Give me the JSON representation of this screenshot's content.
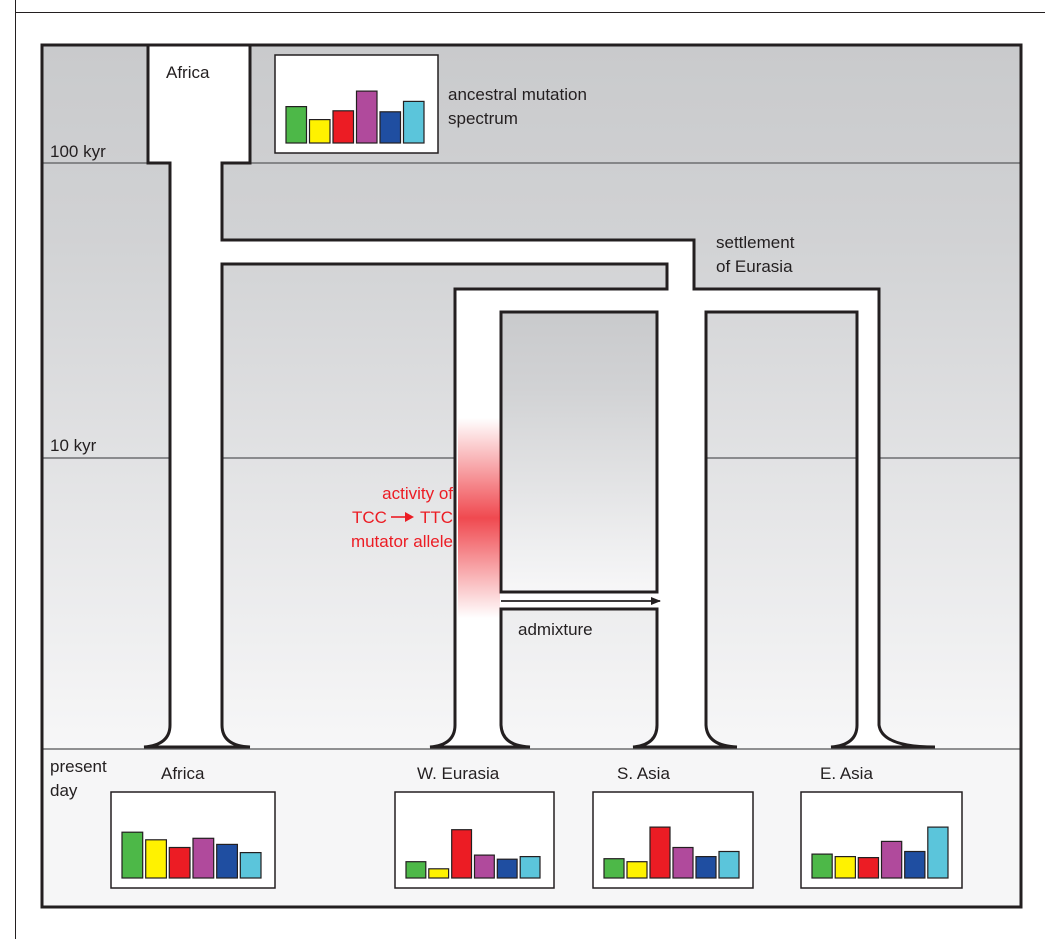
{
  "time_labels": {
    "kyr100": "100 kyr",
    "kyr10": "10 kyr",
    "present_line1": "present",
    "present_line2": "day"
  },
  "annotations": {
    "ancestral_line1": "ancestral mutation",
    "ancestral_line2": "spectrum",
    "settlement_line1": "settlement",
    "settlement_line2": "of Eurasia",
    "mutator_line1": "activity of",
    "mutator_line2_a": "TCC",
    "mutator_line2_b": "TTC",
    "mutator_line3": "mutator allele",
    "admixture": "admixture"
  },
  "populations": {
    "africa_top": "Africa",
    "africa": "Africa",
    "w_eurasia": "W. Eurasia",
    "s_asia": "S. Asia",
    "e_asia": "E. Asia"
  },
  "colors": {
    "series": [
      "#4db848",
      "#fff200",
      "#ec1c24",
      "#b04a9c",
      "#1f4ea1",
      "#5bc5db"
    ],
    "mutator_red": "#ec1c24"
  },
  "spectra": {
    "ancestral": [
      0.7,
      0.45,
      0.62,
      1.0,
      0.6,
      0.8
    ],
    "africa": [
      0.9,
      0.75,
      0.6,
      0.78,
      0.66,
      0.5
    ],
    "w_eurasia": [
      0.32,
      0.18,
      0.95,
      0.45,
      0.37,
      0.42
    ],
    "s_asia": [
      0.38,
      0.32,
      1.0,
      0.6,
      0.42,
      0.52
    ],
    "e_asia": [
      0.47,
      0.42,
      0.4,
      0.72,
      0.52,
      1.0
    ]
  }
}
